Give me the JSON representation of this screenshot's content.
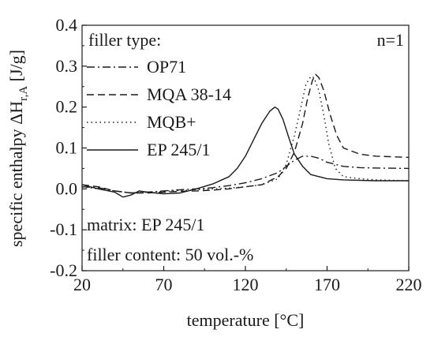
{
  "chart_data": {
    "type": "line",
    "xlabel": "temperature [°C]",
    "ylabel_prefix": "specific enthalpy ΔH",
    "ylabel_sub": "r,A",
    "ylabel_suffix": " [J/g]",
    "xlim": [
      20,
      220
    ],
    "ylim": [
      -0.2,
      0.4
    ],
    "xticks": [
      "20",
      "70",
      "120",
      "170",
      "220"
    ],
    "yticks": [
      "0.4",
      "0.3",
      "0.2",
      "0.1",
      "0.0",
      "-0.1",
      "-0.2"
    ],
    "legend_title": "filler type:",
    "legend_position": "top-left",
    "annotation_n": "n=1",
    "annotation_matrix": "matrix: EP 245/1",
    "annotation_filler": "filler content: 50 vol.-%",
    "series": [
      {
        "name": "OP71",
        "dash": "dashdot",
        "points": [
          [
            20,
            0.005
          ],
          [
            30,
            0.003
          ],
          [
            40,
            -0.005
          ],
          [
            50,
            -0.01
          ],
          [
            60,
            -0.008
          ],
          [
            70,
            -0.005
          ],
          [
            80,
            -0.002
          ],
          [
            90,
            0.0
          ],
          [
            100,
            0.003
          ],
          [
            110,
            0.008
          ],
          [
            120,
            0.015
          ],
          [
            130,
            0.025
          ],
          [
            140,
            0.04
          ],
          [
            145,
            0.055
          ],
          [
            150,
            0.07
          ],
          [
            155,
            0.08
          ],
          [
            160,
            0.08
          ],
          [
            165,
            0.075
          ],
          [
            170,
            0.065
          ],
          [
            180,
            0.055
          ],
          [
            190,
            0.052
          ],
          [
            200,
            0.051
          ],
          [
            220,
            0.05
          ]
        ]
      },
      {
        "name": "MQA 38-14",
        "dash": "dashed",
        "points": [
          [
            20,
            0.01
          ],
          [
            30,
            0.005
          ],
          [
            40,
            -0.005
          ],
          [
            50,
            -0.01
          ],
          [
            60,
            -0.01
          ],
          [
            70,
            -0.008
          ],
          [
            80,
            -0.006
          ],
          [
            90,
            -0.005
          ],
          [
            100,
            -0.003
          ],
          [
            110,
            0.0
          ],
          [
            120,
            0.005
          ],
          [
            130,
            0.01
          ],
          [
            140,
            0.03
          ],
          [
            145,
            0.05
          ],
          [
            150,
            0.09
          ],
          [
            155,
            0.16
          ],
          [
            158,
            0.22
          ],
          [
            161,
            0.265
          ],
          [
            163,
            0.28
          ],
          [
            165,
            0.272
          ],
          [
            168,
            0.24
          ],
          [
            172,
            0.18
          ],
          [
            176,
            0.13
          ],
          [
            180,
            0.1
          ],
          [
            190,
            0.085
          ],
          [
            200,
            0.08
          ],
          [
            220,
            0.077
          ]
        ]
      },
      {
        "name": "MQB+",
        "dash": "dotted",
        "points": [
          [
            20,
            0.005
          ],
          [
            30,
            0.0
          ],
          [
            40,
            -0.005
          ],
          [
            50,
            -0.01
          ],
          [
            60,
            -0.008
          ],
          [
            70,
            -0.006
          ],
          [
            80,
            -0.004
          ],
          [
            90,
            -0.002
          ],
          [
            100,
            0.0
          ],
          [
            110,
            0.002
          ],
          [
            120,
            0.005
          ],
          [
            130,
            0.01
          ],
          [
            140,
            0.025
          ],
          [
            145,
            0.06
          ],
          [
            150,
            0.13
          ],
          [
            154,
            0.2
          ],
          [
            157,
            0.255
          ],
          [
            160,
            0.275
          ],
          [
            162,
            0.272
          ],
          [
            165,
            0.24
          ],
          [
            168,
            0.18
          ],
          [
            171,
            0.11
          ],
          [
            175,
            0.05
          ],
          [
            180,
            0.03
          ],
          [
            190,
            0.025
          ],
          [
            200,
            0.022
          ],
          [
            220,
            0.02
          ]
        ]
      },
      {
        "name": "EP 245/1",
        "dash": "solid",
        "points": [
          [
            20,
            0.01
          ],
          [
            25,
            0.005
          ],
          [
            30,
            0.0
          ],
          [
            40,
            -0.008
          ],
          [
            45,
            -0.02
          ],
          [
            50,
            -0.015
          ],
          [
            55,
            -0.005
          ],
          [
            60,
            -0.008
          ],
          [
            70,
            -0.012
          ],
          [
            80,
            -0.01
          ],
          [
            90,
            0.0
          ],
          [
            100,
            0.012
          ],
          [
            110,
            0.03
          ],
          [
            115,
            0.05
          ],
          [
            120,
            0.08
          ],
          [
            125,
            0.12
          ],
          [
            130,
            0.16
          ],
          [
            135,
            0.19
          ],
          [
            138,
            0.2
          ],
          [
            140,
            0.195
          ],
          [
            143,
            0.17
          ],
          [
            147,
            0.12
          ],
          [
            150,
            0.085
          ],
          [
            155,
            0.055
          ],
          [
            160,
            0.035
          ],
          [
            170,
            0.025
          ],
          [
            180,
            0.022
          ],
          [
            200,
            0.02
          ],
          [
            220,
            0.02
          ]
        ]
      }
    ]
  }
}
